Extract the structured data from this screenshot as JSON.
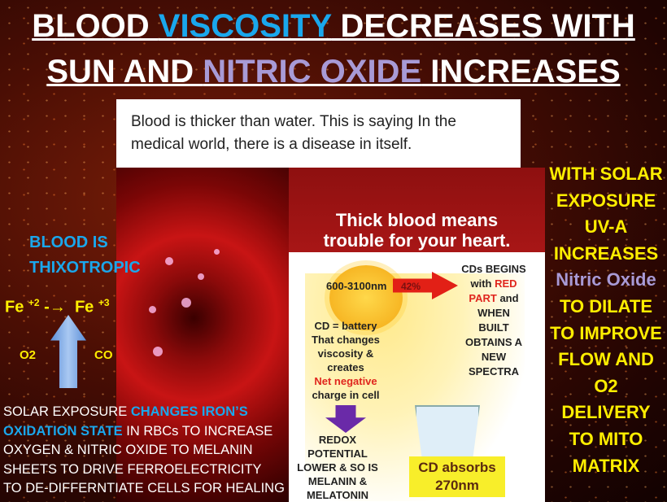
{
  "title": {
    "line1_a": "BLOOD ",
    "line1_b": "VISCOSITY",
    "line1_c": " DECREASES WITH",
    "line2_a": "SUN AND ",
    "line2_b": "NITRIC OXIDE",
    "line2_c": " INCREASES"
  },
  "quote": "Blood is thicker than water. This is saying In the medical world, there is a disease in itself.",
  "panel": {
    "header_1": "Thick blood means",
    "header_2": "trouble for your heart.",
    "sun_label": "600-3100nm",
    "percent": "42%",
    "cds_1": "CDs BEGINS",
    "cds_2a": "with ",
    "cds_2b": "RED",
    "cds_3a": "PART",
    "cds_3b": " and",
    "cds_4": "WHEN",
    "cds_5": "BUILT",
    "cds_6": "OBTAINS A",
    "cds_7": "NEW",
    "cds_8": "SPECTRA",
    "cd_1": "CD = battery",
    "cd_2": "That changes",
    "cd_3": "viscosity &",
    "cd_4": "creates",
    "cd_5": "Net negative",
    "cd_6": "charge in cell",
    "redox_1": "REDOX",
    "redox_2": "POTENTIAL",
    "redox_3": "LOWER & SO IS",
    "redox_4": "MELANIN &",
    "redox_5": "MELATONIN",
    "absorb_1": "CD absorbs",
    "absorb_2": "270nm"
  },
  "left": {
    "thixo_1": "BLOOD IS",
    "thixo_2": "THIXOTROPIC",
    "fe1": "Fe",
    "sup1": "+2",
    "arrow": "-→",
    "fe2": "Fe",
    "sup2": "+3",
    "o2": "O2",
    "co": "CO"
  },
  "right": {
    "l1": "WITH SOLAR",
    "l2": "EXPOSURE",
    "l3": "UV-A",
    "l4": "INCREASES",
    "l5": "Nitric Oxide",
    "l6": "TO  DILATE",
    "l7": "TO IMPROVE",
    "l8": "FLOW AND",
    "l9": "O2",
    "l10": "DELIVERY",
    "l11": "TO MITO",
    "l12": "MATRIX"
  },
  "bottom": {
    "a": "SOLAR EXPOSURE ",
    "b": "CHANGES IRON’S",
    "c": "OXIDATION STATE",
    "d": " IN RBCs TO INCREASE",
    "e": "OXYGEN & NITRIC OXIDE TO MELANIN",
    "f": "SHEETS TO DRIVE FERROELECTRICITY",
    "g": "TO DE-DIFFERNTIATE CELLS FOR HEALING"
  }
}
